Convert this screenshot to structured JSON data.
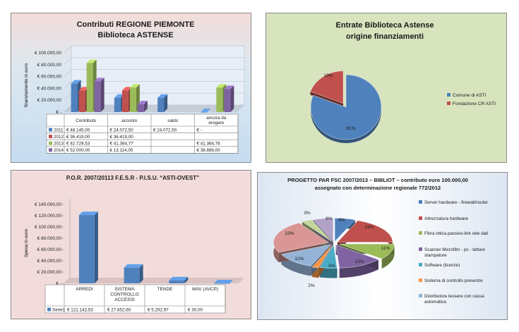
{
  "chart_data": [
    {
      "type": "bar",
      "title": "Contributi REGIONE PIEMONTE",
      "subtitle": "Biblioteca ASTENSE",
      "ylabel": "finanziamento in euro",
      "ylim": [
        0,
        100000
      ],
      "yticks": [
        "€ -",
        "€ 20.000,00",
        "€ 40.000,00",
        "€ 60.000,00",
        "€ 80.000,00",
        "€ 100.000,00"
      ],
      "categories": [
        "Contributo",
        "acconto",
        "saldo",
        "ancora da erogare"
      ],
      "series": [
        {
          "name": "2011",
          "color": "#4f81bd",
          "values": [
            48145,
            24072.5,
            24072.5,
            0
          ],
          "labels": [
            "€ 48.145,00",
            "€ 24.072,50",
            "€ 24.072,50",
            "€ -"
          ]
        },
        {
          "name": "2012",
          "color": "#c0504d",
          "values": [
            36419,
            36419,
            null,
            null
          ],
          "labels": [
            "€ 36.419,00",
            "€ 36.419,00",
            "",
            ""
          ]
        },
        {
          "name": "2013",
          "color": "#9bbb59",
          "values": [
            82729.53,
            41364.77,
            null,
            41364.76
          ],
          "labels": [
            "€ 82.729,53",
            "€ 41.364,77",
            "",
            "€ 41.364,76"
          ]
        },
        {
          "name": "2014",
          "color": "#8064a2",
          "values": [
            52000,
            13114,
            null,
            38886
          ],
          "labels": [
            "€ 52.000,00",
            "€ 13.114,00",
            "",
            "€ 38.886,00"
          ]
        }
      ]
    },
    {
      "type": "pie",
      "title": "Entrate Biblioteca Astense",
      "subtitle": "origine finanziamenti",
      "slices": [
        {
          "label": "Comune di ASTI",
          "value": 81,
          "text": "81%",
          "color": "#4f81bd"
        },
        {
          "label": "Fondazione CR ASTI",
          "value": 19,
          "text": "19%",
          "color": "#c0504d"
        }
      ]
    },
    {
      "type": "bar",
      "title": "P.O.R. 2007/20113 F.E.S.R - P.I.S.U. “ASTI-OVEST”",
      "ylabel": "Spesa in euro",
      "ylim": [
        0,
        140000
      ],
      "yticks": [
        "€ -",
        "€ 20.000,00",
        "€ 40.000,00",
        "€ 60.000,00",
        "€ 80.000,00",
        "€ 100.000,00",
        "€ 120.000,00",
        "€ 140.000,00"
      ],
      "categories": [
        "ARREDI",
        "SISTEMA CONTROLLO ACCESSI",
        "TENDE",
        "MAV (AVCP)"
      ],
      "category_lines": [
        [
          "ARREDI"
        ],
        [
          "SISTEMA",
          "CONTROLLO",
          "ACCESSI"
        ],
        [
          "TENDE"
        ],
        [
          "MAV (AVCP)"
        ]
      ],
      "series": [
        {
          "name": "Serie1",
          "color": "#4f81bd",
          "values": [
            121142.53,
            27852.6,
            5292.97,
            30
          ],
          "labels": [
            "€ 121.142,53",
            "€ 27.852,60",
            "€ 5.292,97",
            "€ 30,00"
          ]
        }
      ]
    },
    {
      "type": "pie",
      "title": "PROGETTO PAR FSC 2007/2013 – BIBLIOT – contributo euro 100.000,00",
      "subtitle": "assegnato con determinazione regionale 772/2012",
      "slices": [
        {
          "label": "Server hardware - firewall/router",
          "value": 6,
          "text": "6%",
          "color": "#4f81bd"
        },
        {
          "label": "Attrezzatura hardware",
          "value": 19,
          "text": "19%",
          "color": "#c0504d"
        },
        {
          "label": "Fibra ottica passivo-link rete dati",
          "value": 11,
          "text": "11%",
          "color": "#9bbb59"
        },
        {
          "label": "Scanner Microfilm - pc - lettore stampatore",
          "value": 13,
          "text": "13%",
          "color": "#8064a2"
        },
        {
          "label": "Software (licenze)",
          "value": 5,
          "text": "5%",
          "color": "#4bacc6"
        },
        {
          "label": "Sistema di controllo presenze",
          "value": 2,
          "text": "2%",
          "color": "#f79646"
        },
        {
          "label": "Distributore tessere con cassa automatica",
          "value": 12,
          "text": "12%",
          "color": "#95b3d7"
        },
        {
          "label": "",
          "value": 23,
          "text": "23%",
          "color": "#d99694"
        },
        {
          "label": "",
          "value": 3,
          "text": "3%",
          "color": "#c3d69b"
        },
        {
          "label": "",
          "value": 6,
          "text": "6%",
          "color": "#b3a2c7"
        }
      ],
      "legend_lines": [
        [
          "Server hardware - firewall/router"
        ],
        [
          "Attrezzatura hardware"
        ],
        [
          "Fibra ottica passivo-link rete dati"
        ],
        [
          "Scanner Microfilm - pc - lettore",
          "stampatore"
        ],
        [
          "Software (licenze)"
        ],
        [
          "Sistema di controllo presenze"
        ],
        [
          "Distributore tessere con cassa",
          "automatica"
        ]
      ]
    }
  ]
}
